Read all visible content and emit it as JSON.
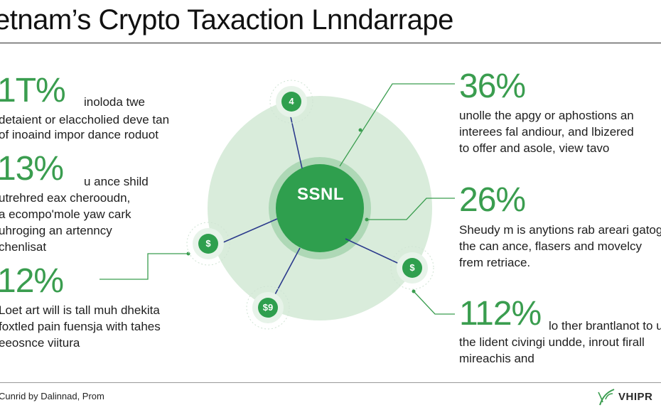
{
  "title": "etnam’s Crypto Taxaction Lnndarrape",
  "hub_label": "SSNL",
  "nodes": [
    "4",
    "$",
    "$",
    "$9"
  ],
  "left_stats": [
    {
      "value": "1T%",
      "lines": [
        "inoloda twe",
        "detaient or elaccholied deve tan",
        "of inoaind impor dance roduot"
      ]
    },
    {
      "value": "13%",
      "lines": [
        "u ance shild",
        "utrehred eax cherooudn,",
        "a ecompo'mole yaw cark",
        "uhroging an artenncy",
        "chenlisat"
      ]
    },
    {
      "value": "12%",
      "lines": [
        "Loet art will is tall muh dhekita",
        "foxtled pain fuensja with tahes",
        "eeosnce viitura"
      ]
    }
  ],
  "right_stats": [
    {
      "value": "36%",
      "lines": [
        "unolle the apgy or aphostions an",
        "interees fal andiour, and lbizered",
        "to offer and asole, view tavo"
      ]
    },
    {
      "value": "26%",
      "lines": [
        "Sheudy m is anytions rab areari gatog",
        "the can ance, flasers and movelcy",
        "frem retriace."
      ]
    },
    {
      "value": "112%",
      "lines": [
        "lo ther brantlanot to u",
        "the lident civingi undde, inrout firall",
        "mireachis and"
      ]
    }
  ],
  "footer": {
    "credit": "Cunrid by Dalinnad, Prom",
    "brand": "VHIPR"
  },
  "colors": {
    "accent_green": "#3a9d4f",
    "hub_green": "#2e9e4e",
    "connector_blue": "#2b3a8c",
    "circle_bg": "#d6ead8"
  }
}
